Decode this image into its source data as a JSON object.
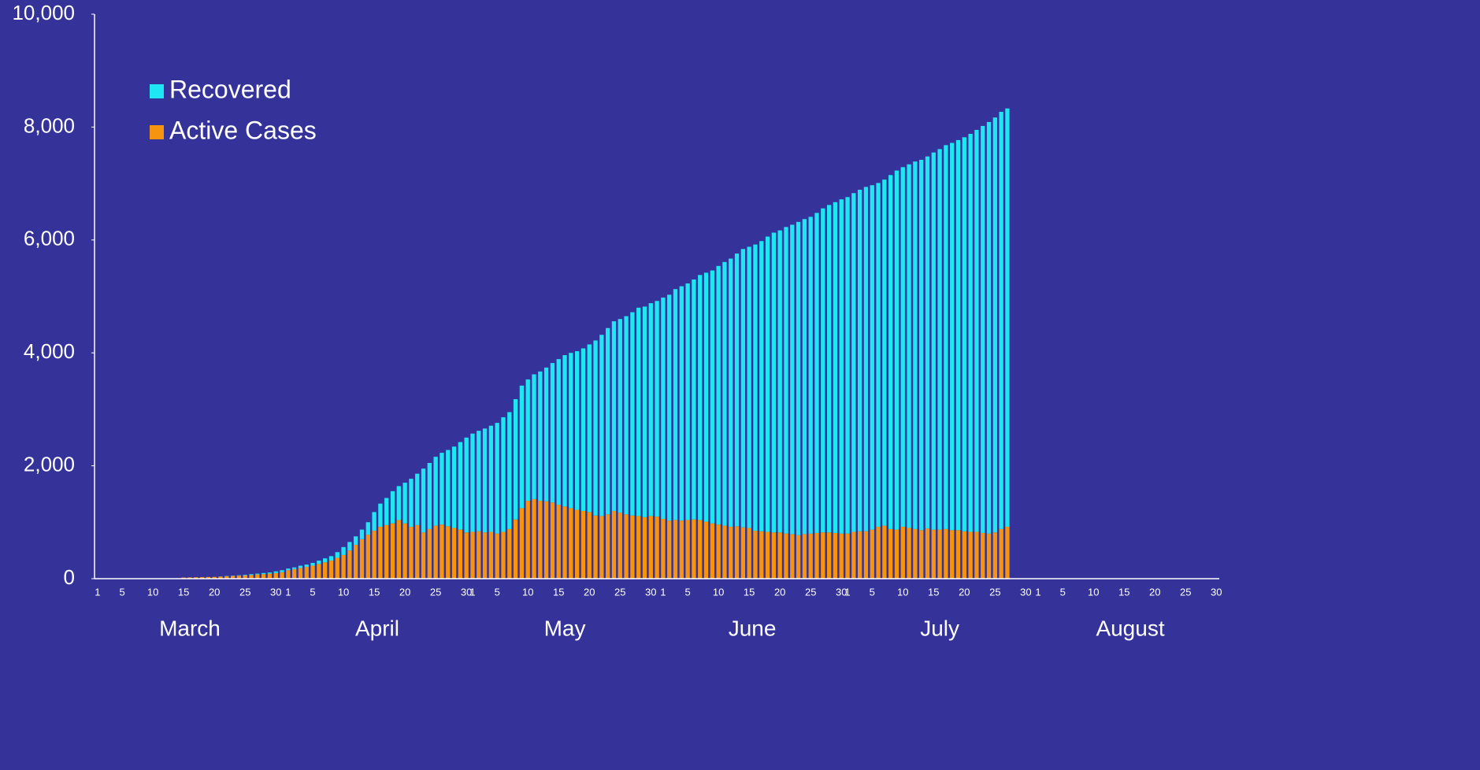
{
  "chart_data": {
    "type": "stacked_bar",
    "months": [
      "March",
      "April",
      "May",
      "June",
      "July",
      "August"
    ],
    "categories": [
      1,
      null,
      null,
      null,
      5,
      null,
      null,
      null,
      null,
      10,
      null,
      null,
      null,
      null,
      15,
      null,
      null,
      null,
      null,
      20,
      null,
      null,
      null,
      null,
      25,
      null,
      null,
      null,
      null,
      30,
      null,
      1,
      null,
      null,
      null,
      5,
      null,
      null,
      null,
      null,
      10,
      null,
      null,
      null,
      null,
      15,
      null,
      null,
      null,
      null,
      20,
      null,
      null,
      null,
      null,
      25,
      null,
      null,
      null,
      null,
      30,
      1,
      null,
      null,
      null,
      5,
      null,
      null,
      null,
      null,
      10,
      null,
      null,
      null,
      null,
      15,
      null,
      null,
      null,
      null,
      20,
      null,
      null,
      null,
      null,
      25,
      null,
      null,
      null,
      null,
      30,
      null,
      1,
      null,
      null,
      null,
      5,
      null,
      null,
      null,
      null,
      10,
      null,
      null,
      null,
      null,
      15,
      null,
      null,
      null,
      null,
      20,
      null,
      null,
      null,
      null,
      25,
      null,
      null,
      null,
      null,
      30,
      1,
      null,
      null,
      null,
      5,
      null,
      null,
      null,
      null,
      10,
      null,
      null,
      null,
      null,
      15,
      null,
      null,
      null,
      null,
      20,
      null,
      null,
      null,
      null,
      25,
      null,
      null,
      null,
      null,
      30,
      null,
      1,
      null,
      null,
      null,
      5,
      null,
      null,
      null,
      null,
      10,
      null,
      null,
      null,
      null,
      15,
      null,
      null,
      null,
      null,
      20,
      null,
      null,
      null,
      null,
      25,
      null,
      null,
      null,
      null,
      30,
      null
    ],
    "series": [
      {
        "name": "Recovered",
        "color": "#1ee6f2",
        "values": [
          null,
          null,
          null,
          null,
          null,
          null,
          null,
          null,
          null,
          null,
          null,
          null,
          null,
          null,
          0,
          0,
          0,
          0,
          0,
          0,
          2,
          5,
          5,
          5,
          10,
          15,
          15,
          20,
          20,
          30,
          35,
          30,
          30,
          40,
          40,
          50,
          60,
          70,
          80,
          100,
          140,
          150,
          150,
          170,
          220,
          330,
          410,
          480,
          570,
          600,
          720,
          850,
          910,
          1130,
          1170,
          1220,
          1270,
          1350,
          1440,
          1550,
          1680,
          1740,
          1780,
          1840,
          1880,
          1960,
          2030,
          2070,
          2130,
          2170,
          2150,
          2210,
          2290,
          2370,
          2470,
          2580,
          2680,
          2750,
          2810,
          2880,
          2970,
          3100,
          3210,
          3300,
          3360,
          3430,
          3510,
          3600,
          3690,
          3730,
          3770,
          3820,
          3920,
          4000,
          4090,
          4150,
          4190,
          4250,
          4340,
          4410,
          4480,
          4580,
          4670,
          4750,
          4830,
          4930,
          4980,
          5070,
          5140,
          5230,
          5310,
          5350,
          5430,
          5480,
          5550,
          5580,
          5610,
          5670,
          5740,
          5800,
          5860,
          5920,
          5960,
          6000,
          6050,
          6100,
          6100,
          6090,
          6130,
          6270,
          6360,
          6370,
          6440,
          6510,
          6560,
          6590,
          6680,
          6740,
          6800,
          6860,
          6910,
          6980,
          7050,
          7120,
          7210,
          7290,
          7350,
          7390,
          7410,
          null,
          null,
          null,
          null,
          null,
          null,
          null,
          null,
          null,
          null,
          null,
          null,
          null,
          null,
          null,
          null,
          null,
          null,
          null,
          null,
          null,
          null,
          null,
          null,
          null,
          null,
          null,
          null,
          null,
          null,
          null,
          null,
          null,
          null,
          null
        ]
      },
      {
        "name": "Active Cases",
        "color": "#f7940f",
        "values": [
          null,
          null,
          null,
          null,
          null,
          null,
          null,
          null,
          null,
          null,
          null,
          null,
          null,
          null,
          20,
          22,
          25,
          28,
          30,
          32,
          38,
          45,
          50,
          55,
          60,
          65,
          75,
          80,
          90,
          100,
          115,
          150,
          170,
          190,
          210,
          230,
          260,
          290,
          320,
          370,
          420,
          500,
          600,
          700,
          780,
          850,
          920,
          950,
          980,
          1040,
          980,
          920,
          950,
          820,
          880,
          940,
          960,
          930,
          900,
          870,
          820,
          830,
          840,
          820,
          830,
          800,
          830,
          880,
          1050,
          1250,
          1380,
          1410,
          1380,
          1370,
          1350,
          1310,
          1280,
          1250,
          1220,
          1200,
          1180,
          1120,
          1110,
          1140,
          1200,
          1170,
          1140,
          1120,
          1110,
          1090,
          1110,
          1100,
          1060,
          1030,
          1040,
          1030,
          1040,
          1050,
          1040,
          1010,
          980,
          960,
          940,
          920,
          930,
          910,
          900,
          850,
          840,
          830,
          820,
          820,
          800,
          790,
          770,
          790,
          800,
          810,
          820,
          820,
          810,
          800,
          800,
          830,
          840,
          840,
          870,
          920,
          940,
          880,
          870,
          920,
          900,
          880,
          860,
          890,
          870,
          870,
          880,
          860,
          860,
          840,
          830,
          830,
          810,
          800,
          820,
          880,
          920,
          null,
          null,
          null,
          null,
          null,
          null,
          null,
          null,
          null,
          null,
          null,
          null,
          null,
          null,
          null,
          null,
          null,
          null,
          null,
          null,
          null,
          null,
          null,
          null,
          null,
          null,
          null,
          null,
          null,
          null,
          null,
          null,
          null,
          null,
          null
        ]
      }
    ],
    "ylim": [
      0,
      10000
    ],
    "yticks": [
      0,
      {
        "value": 2000,
        "label": "2,000"
      },
      {
        "value": 4000,
        "label": "4,000"
      },
      {
        "value": 6000,
        "label": "6,000"
      },
      {
        "value": 8000,
        "label": "8,000"
      },
      {
        "value": 10000,
        "label": "10,000"
      }
    ],
    "legend": "upper-left"
  }
}
